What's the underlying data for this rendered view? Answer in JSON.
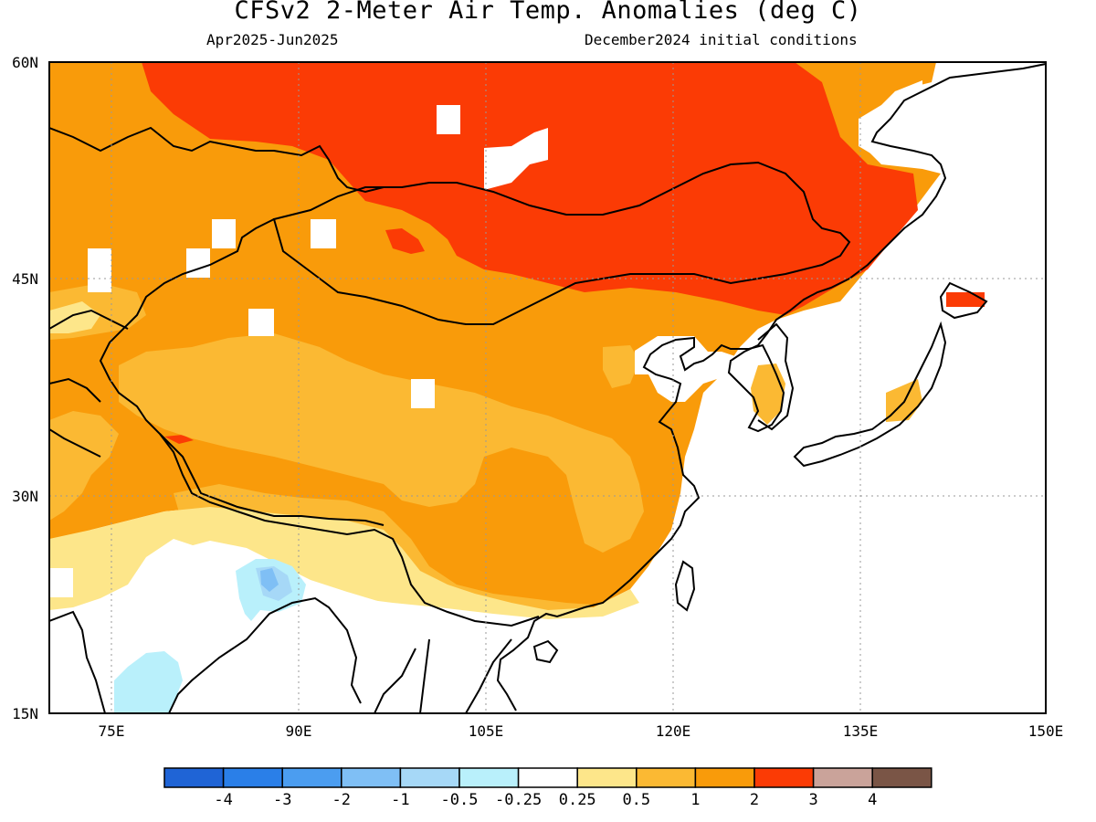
{
  "title": "CFSv2 2-Meter Air Temp. Anomalies (deg C)",
  "subtitle_left": "Apr2025-Jun2025",
  "subtitle_right": "December2024 initial conditions",
  "map": {
    "lon_range": [
      70,
      150
    ],
    "lat_range": [
      15,
      60
    ],
    "lat_labels": [
      "60N",
      "45N",
      "30N",
      "15N"
    ],
    "lon_labels": [
      "75E",
      "90E",
      "105E",
      "120E",
      "135E",
      "150E"
    ],
    "grid": "dotted"
  },
  "colorbar": {
    "labels": [
      "-4",
      "-3",
      "-2",
      "-1",
      "-0.5",
      "-0.25",
      "0.25",
      "0.5",
      "1",
      "2",
      "3",
      "4"
    ],
    "colors": [
      "#1f64d6",
      "#2a7fe8",
      "#4b9df0",
      "#7fbff5",
      "#a6d8f7",
      "#b9f0fb",
      "#ffffff",
      "#fde68a",
      "#fbb933",
      "#f99b0a",
      "#fb3b05",
      "#caa39a",
      "#7a5546"
    ]
  },
  "anomaly_colors": {
    "gt_3_or_2to3": "#fb3b05",
    "1_to_2": "#f99b0a",
    "0.5_to_1": "#fbb933",
    "0.25_to_0.5": "#fde68a",
    "neg_0.25_to_neg_0.5": "#b9f0fb",
    "neg_0.5_to_neg_1": "#a6d8f7",
    "neg_1_to_neg_2": "#7fbff5"
  }
}
